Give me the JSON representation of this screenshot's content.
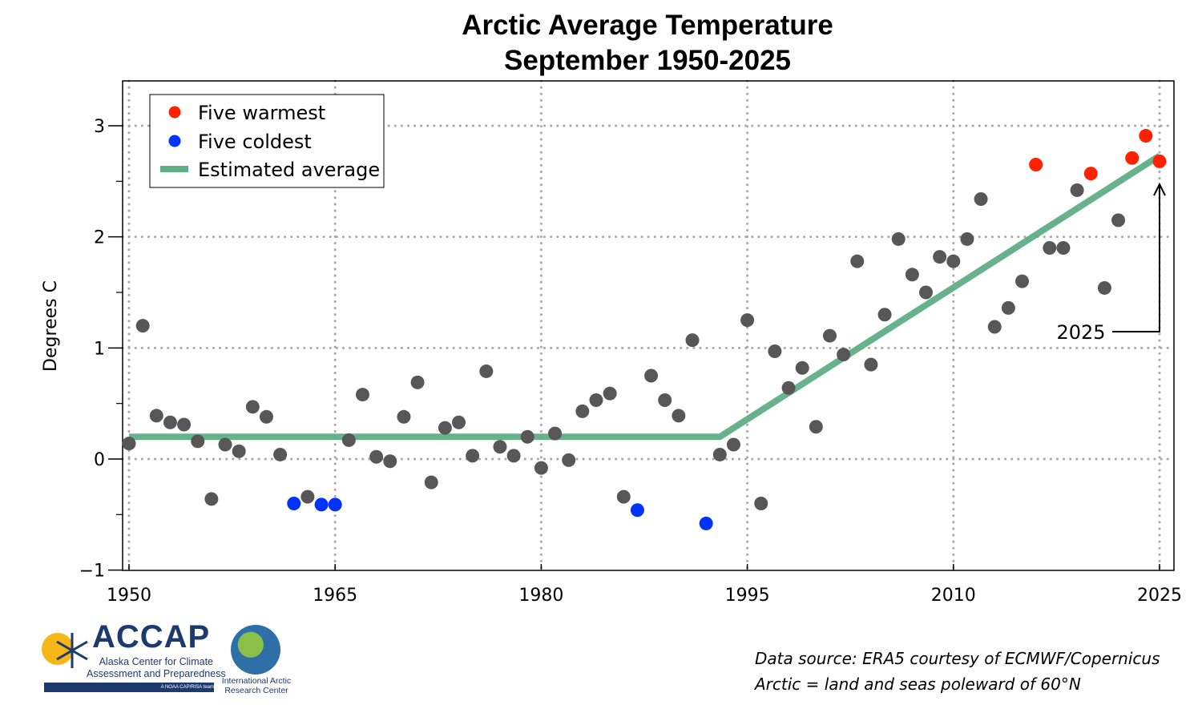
{
  "chart_data": {
    "type": "scatter",
    "title": "Arctic Average Temperature",
    "subtitle": "September 1950-2025",
    "xlabel": "",
    "ylabel": "Degrees C",
    "xlim": [
      1949.5,
      2026
    ],
    "ylim": [
      -1,
      3.4
    ],
    "grid": true,
    "x_ticks": [
      "1950",
      "1965",
      "1980",
      "1995",
      "2010",
      "2025"
    ],
    "x_tick_values": [
      1950,
      1965,
      1980,
      1995,
      2010,
      2025
    ],
    "y_ticks": [
      "−1",
      "0",
      "1",
      "2",
      "3"
    ],
    "y_tick_values": [
      -1,
      0,
      1,
      2,
      3
    ],
    "legend_placement": "top-left",
    "legend": {
      "warm": "Five warmest",
      "cold": "Five coldest",
      "trend": "Estimated average"
    },
    "colors": {
      "normal": "#575757",
      "warm": "#ff2200",
      "cold": "#0033ff",
      "trend": "#5fae85"
    },
    "years": [
      1950,
      1951,
      1952,
      1953,
      1954,
      1955,
      1956,
      1957,
      1958,
      1959,
      1960,
      1961,
      1962,
      1963,
      1964,
      1965,
      1966,
      1967,
      1968,
      1969,
      1970,
      1971,
      1972,
      1973,
      1974,
      1975,
      1976,
      1977,
      1978,
      1979,
      1980,
      1981,
      1982,
      1983,
      1984,
      1985,
      1986,
      1987,
      1988,
      1989,
      1990,
      1991,
      1992,
      1993,
      1994,
      1995,
      1996,
      1997,
      1998,
      1999,
      2000,
      2001,
      2002,
      2003,
      2004,
      2005,
      2006,
      2007,
      2008,
      2009,
      2010,
      2011,
      2012,
      2013,
      2014,
      2015,
      2016,
      2017,
      2018,
      2019,
      2020,
      2021,
      2022,
      2023,
      2024,
      2025
    ],
    "values": [
      0.14,
      1.2,
      0.39,
      0.33,
      0.31,
      0.16,
      -0.36,
      0.13,
      0.07,
      0.47,
      0.38,
      0.04,
      -0.4,
      -0.34,
      -0.41,
      -0.41,
      0.17,
      0.58,
      0.02,
      -0.02,
      0.38,
      0.69,
      -0.21,
      0.28,
      0.33,
      0.03,
      0.79,
      0.11,
      0.03,
      0.2,
      -0.08,
      0.23,
      -0.01,
      0.43,
      0.53,
      0.59,
      -0.34,
      -0.46,
      0.75,
      0.53,
      0.39,
      1.07,
      -0.58,
      0.04,
      0.13,
      1.25,
      -0.4,
      0.97,
      0.64,
      0.82,
      0.29,
      1.11,
      0.94,
      1.78,
      0.85,
      1.3,
      1.98,
      1.66,
      1.5,
      1.82,
      1.78,
      1.98,
      2.34,
      1.19,
      1.36,
      1.6,
      2.65,
      1.9,
      1.9,
      2.42,
      2.57,
      1.54,
      2.15,
      2.71,
      2.91,
      2.68
    ],
    "warmest_years": [
      2016,
      2020,
      2023,
      2024,
      2025
    ],
    "coldest_years": [
      1962,
      1964,
      1965,
      1987,
      1992
    ],
    "trend_line": {
      "x": [
        1950,
        1993,
        2025
      ],
      "y": [
        0.2,
        0.2,
        2.73
      ]
    },
    "annotation": {
      "label": "2025",
      "year": 2025
    }
  },
  "footer": {
    "source_line1": "Data source: ERA5 courtesy of ECMWF/Copernicus",
    "source_line2": "Arctic = land and seas poleward of 60°N"
  },
  "logos": {
    "accap_name": "ACCAP",
    "accap_sub1": "Alaska Center for Climate",
    "accap_sub2": "Assessment and Preparedness",
    "accap_tag": "A NOAA CAP/RISA team",
    "iarc_line1": "International Arctic",
    "iarc_line2": "Research Center"
  }
}
